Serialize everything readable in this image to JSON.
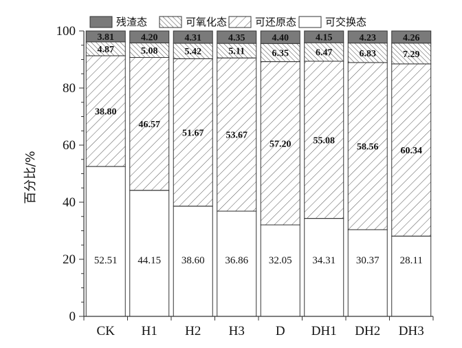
{
  "chart_data": {
    "type": "bar",
    "stacked": true,
    "categories": [
      "CK",
      "H1",
      "H2",
      "H3",
      "D",
      "DH1",
      "DH2",
      "DH3"
    ],
    "series": [
      {
        "name": "可交换态",
        "values": [
          52.51,
          44.15,
          38.6,
          36.86,
          32.05,
          34.31,
          30.37,
          28.11
        ],
        "labels": [
          "52.51",
          "44.15",
          "38.60",
          "36.86",
          "32.05",
          "34.31",
          "30.37",
          "28.11"
        ],
        "pattern": "none"
      },
      {
        "name": "可还原态",
        "values": [
          38.8,
          46.57,
          51.67,
          53.67,
          57.2,
          55.08,
          58.56,
          60.34
        ],
        "labels": [
          "38.80",
          "46.57",
          "51.67",
          "53.67",
          "57.20",
          "55.08",
          "58.56",
          "60.34"
        ],
        "pattern": "sparse-hatch"
      },
      {
        "name": "可氧化态",
        "values": [
          4.87,
          5.08,
          5.42,
          5.11,
          6.35,
          6.47,
          6.83,
          7.29
        ],
        "labels": [
          "4.87",
          "5.08",
          "5.42",
          "5.11",
          "6.35",
          "6.47",
          "6.83",
          "7.29"
        ],
        "pattern": "dense-hatch"
      },
      {
        "name": "残渣态",
        "values": [
          3.81,
          4.2,
          4.31,
          4.35,
          4.4,
          4.15,
          4.23,
          4.26
        ],
        "labels": [
          "3.81",
          "4.20",
          "4.31",
          "4.35",
          "4.40",
          "4.15",
          "4.23",
          "4.26"
        ],
        "pattern": "solid-gray"
      }
    ],
    "legend_order": [
      "残渣态",
      "可氧化态",
      "可还原态",
      "可交换态"
    ],
    "ylabel": "百分比/%",
    "xlabel": "",
    "ylim": [
      0,
      100
    ],
    "yticks": [
      0,
      20,
      40,
      60,
      80,
      100
    ],
    "ytick_labels": [
      "0",
      "20",
      "40",
      "60",
      "80",
      "100"
    ],
    "legend_position": "top",
    "grid": false
  },
  "colors": {
    "residual_fill": "#7a7a7a",
    "hatch_line": "#555555",
    "bar_stroke": "#333333",
    "axis": "#333333"
  }
}
